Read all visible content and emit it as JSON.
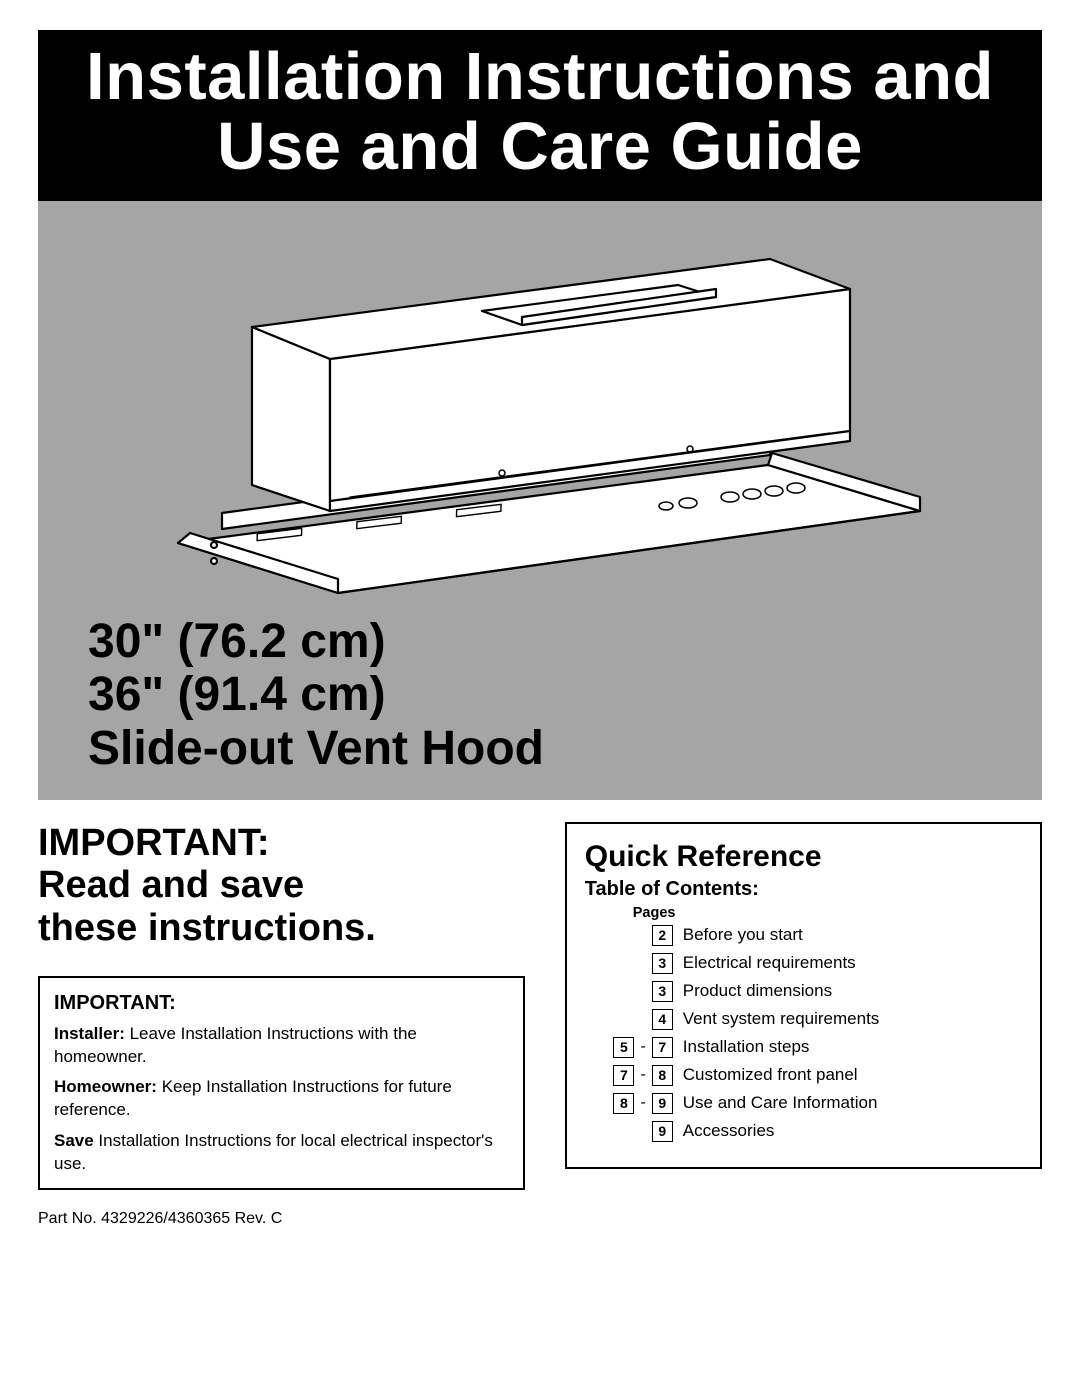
{
  "title": {
    "line1": "Installation Instructions and",
    "line2": "Use and Care Guide"
  },
  "hero": {
    "size1": "30\" (76.2 cm)",
    "size2": "36\" (91.4 cm)",
    "product_name": "Slide-out Vent Hood",
    "illustration": {
      "background_color": "#a5a5a5",
      "hood_fill": "#ffffff",
      "stroke": "#000000"
    }
  },
  "important": {
    "heading_line1": "IMPORTANT:",
    "heading_line2": "Read and save",
    "heading_line3": "these instructions.",
    "box_title": "IMPORTANT:",
    "installer_label": "Installer:",
    "installer_text": " Leave Installation Instructions with the homeowner.",
    "homeowner_label": "Homeowner:",
    "homeowner_text": " Keep Installation Instructions for future reference.",
    "save_label": "Save",
    "save_text": " Installation Instructions for local electrical inspector's use."
  },
  "part_no": "Part No. 4329226/4360365 Rev. C",
  "quick_reference": {
    "title": "Quick Reference",
    "subtitle": "Table of Contents:",
    "pages_label": "Pages",
    "rows": [
      {
        "pages": [
          "2"
        ],
        "label": "Before you start"
      },
      {
        "pages": [
          "3"
        ],
        "label": "Electrical requirements"
      },
      {
        "pages": [
          "3"
        ],
        "label": "Product dimensions"
      },
      {
        "pages": [
          "4"
        ],
        "label": "Vent system requirements"
      },
      {
        "pages": [
          "5",
          "7"
        ],
        "label": "Installation steps"
      },
      {
        "pages": [
          "7",
          "8"
        ],
        "label": "Customized front panel"
      },
      {
        "pages": [
          "8",
          "9"
        ],
        "label": "Use and Care Information"
      },
      {
        "pages": [
          "9"
        ],
        "label": "Accessories"
      }
    ]
  }
}
